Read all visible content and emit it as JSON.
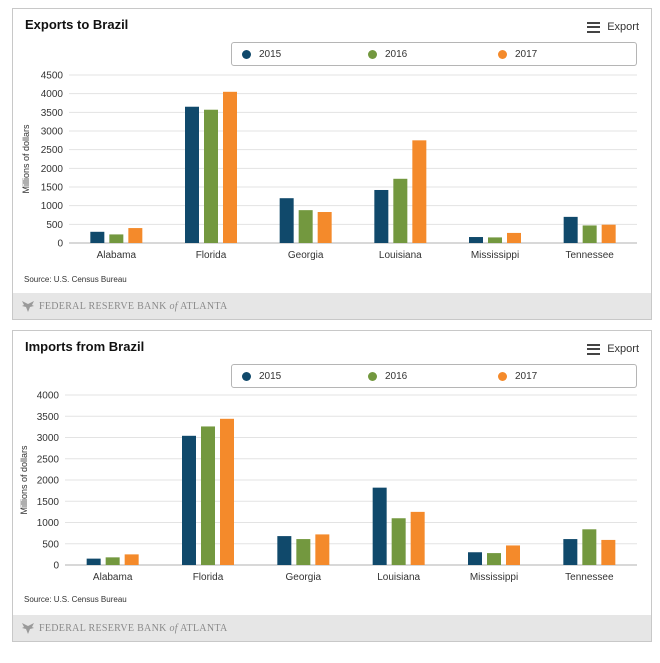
{
  "colors": {
    "2015": "#10496b",
    "2016": "#73983f",
    "2017": "#f48a2b"
  },
  "panels": [
    {
      "title": "Exports to Brazil",
      "export_label": "Export",
      "source": "Source: U.S. Census Bureau",
      "footer": {
        "main": "FEDERAL RESERVE BANK",
        "of": "of",
        "city": "ATLANTA"
      }
    },
    {
      "title": "Imports from Brazil",
      "export_label": "Export",
      "source": "Source: U.S. Census Bureau",
      "footer": {
        "main": "FEDERAL RESERVE BANK",
        "of": "of",
        "city": "ATLANTA"
      }
    }
  ],
  "chart_data": [
    {
      "type": "bar",
      "title": "Exports to Brazil",
      "ylabel": "Millions of dollars",
      "ylim": [
        0,
        4500
      ],
      "yticks": [
        0,
        500,
        1000,
        1500,
        2000,
        2500,
        3000,
        3500,
        4000,
        4500
      ],
      "categories": [
        "Alabama",
        "Florida",
        "Georgia",
        "Louisiana",
        "Mississippi",
        "Tennessee"
      ],
      "legend_position": "top-center",
      "grid": true,
      "series": [
        {
          "name": "2015",
          "values": [
            300,
            3650,
            1200,
            1420,
            160,
            700
          ]
        },
        {
          "name": "2016",
          "values": [
            230,
            3570,
            880,
            1720,
            150,
            470
          ]
        },
        {
          "name": "2017",
          "values": [
            400,
            4050,
            830,
            2750,
            270,
            490
          ]
        }
      ]
    },
    {
      "type": "bar",
      "title": "Imports from Brazil",
      "ylabel": "Millions of dollars",
      "ylim": [
        0,
        4000
      ],
      "yticks": [
        0,
        500,
        1000,
        1500,
        2000,
        2500,
        3000,
        3500,
        4000
      ],
      "categories": [
        "Alabama",
        "Florida",
        "Georgia",
        "Louisiana",
        "Mississippi",
        "Tennessee"
      ],
      "legend_position": "top-center",
      "grid": true,
      "series": [
        {
          "name": "2015",
          "values": [
            150,
            3040,
            680,
            1820,
            300,
            610
          ]
        },
        {
          "name": "2016",
          "values": [
            180,
            3260,
            610,
            1100,
            280,
            840
          ]
        },
        {
          "name": "2017",
          "values": [
            250,
            3440,
            720,
            1250,
            460,
            590
          ]
        }
      ]
    }
  ]
}
